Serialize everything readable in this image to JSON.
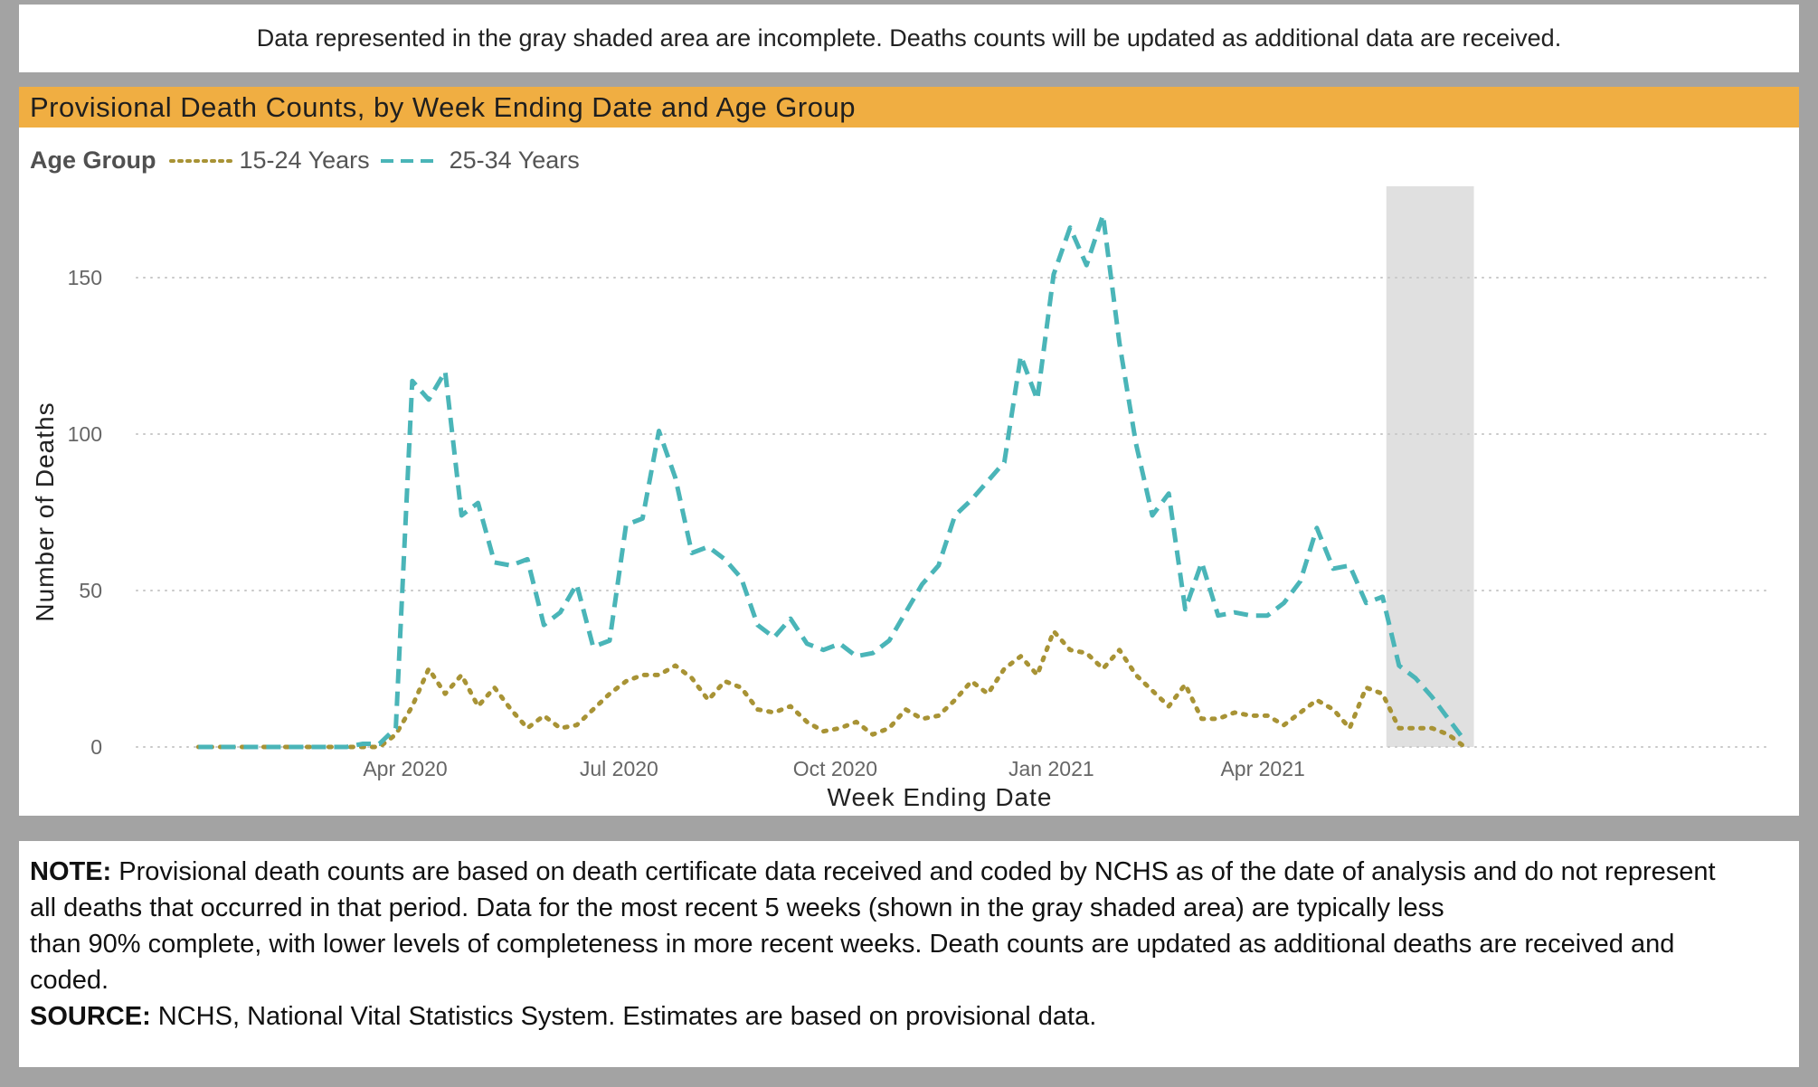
{
  "banner": {
    "text": "Data represented in the gray shaded area are incomplete. Deaths counts will be updated as additional data are received."
  },
  "chart": {
    "title": "Provisional Death Counts, by Week Ending Date and Age Group",
    "legend_title": "Age Group"
  },
  "notes": {
    "note_label": "NOTE:",
    "note_line1": " Provisional death counts are based on death certificate data received and coded by NCHS as of the date of analysis and do not represent",
    "note_line2": "all deaths that occurred in that period. Data for the most recent 5 weeks (shown in the gray shaded area) are typically less",
    "note_line3": "than 90% complete, with lower levels of completeness in more recent weeks.  Death counts are updated as additional deaths are received and",
    "note_line4": "coded.",
    "source_label": "SOURCE:",
    "source_text": " NCHS, National Vital Statistics System. Estimates are based on provisional data."
  },
  "colors": {
    "title_bar": "#f0ae42",
    "series_15_24": "#a89335",
    "series_25_34": "#4ab5b8",
    "shade": "#e0e0e0"
  },
  "chart_data": {
    "type": "line",
    "title": "Provisional Death Counts, by Week Ending Date and Age Group",
    "xlabel": "Week Ending Date",
    "ylabel": "Number of Deaths",
    "ylim": [
      0,
      170
    ],
    "yticks": [
      0,
      50,
      100,
      150
    ],
    "xticks": [
      {
        "label": "Apr 2020",
        "date": "2020-04-01"
      },
      {
        "label": "Jul 2020",
        "date": "2020-07-01"
      },
      {
        "label": "Oct 2020",
        "date": "2020-10-01"
      },
      {
        "label": "Jan 2021",
        "date": "2021-01-01"
      },
      {
        "label": "Apr 2021",
        "date": "2021-04-01"
      }
    ],
    "grid": "horizontal dotted",
    "legend_position": "top-left",
    "shaded_region": {
      "from": "2021-05-29",
      "to": "2021-06-26",
      "label": "incomplete data"
    },
    "x": [
      "2020-01-04",
      "2020-01-11",
      "2020-01-18",
      "2020-01-25",
      "2020-02-01",
      "2020-02-08",
      "2020-02-15",
      "2020-02-22",
      "2020-02-29",
      "2020-03-07",
      "2020-03-14",
      "2020-03-21",
      "2020-03-28",
      "2020-04-04",
      "2020-04-11",
      "2020-04-18",
      "2020-04-25",
      "2020-05-02",
      "2020-05-09",
      "2020-05-16",
      "2020-05-23",
      "2020-05-30",
      "2020-06-06",
      "2020-06-13",
      "2020-06-20",
      "2020-06-27",
      "2020-07-04",
      "2020-07-11",
      "2020-07-18",
      "2020-07-25",
      "2020-08-01",
      "2020-08-08",
      "2020-08-15",
      "2020-08-22",
      "2020-08-29",
      "2020-09-05",
      "2020-09-12",
      "2020-09-19",
      "2020-09-26",
      "2020-10-03",
      "2020-10-10",
      "2020-10-17",
      "2020-10-24",
      "2020-10-31",
      "2020-11-07",
      "2020-11-14",
      "2020-11-21",
      "2020-11-28",
      "2020-12-05",
      "2020-12-12",
      "2020-12-19",
      "2020-12-26",
      "2021-01-02",
      "2021-01-09",
      "2021-01-16",
      "2021-01-23",
      "2021-01-30",
      "2021-02-06",
      "2021-02-13",
      "2021-02-20",
      "2021-02-27",
      "2021-03-06",
      "2021-03-13",
      "2021-03-20",
      "2021-03-27",
      "2021-04-03",
      "2021-04-10",
      "2021-04-17",
      "2021-04-24",
      "2021-05-01",
      "2021-05-08",
      "2021-05-15",
      "2021-05-22",
      "2021-05-29",
      "2021-06-05",
      "2021-06-12",
      "2021-06-19",
      "2021-06-26"
    ],
    "series": [
      {
        "name": "15-24 Years",
        "style": "dotted",
        "color": "#a89335",
        "values": [
          0,
          0,
          0,
          0,
          0,
          0,
          0,
          0,
          0,
          0,
          0,
          0,
          4,
          13,
          25,
          17,
          23,
          13,
          19,
          12,
          6,
          10,
          6,
          7,
          12,
          17,
          21,
          23,
          23,
          26,
          22,
          15,
          21,
          19,
          12,
          11,
          13,
          8,
          5,
          6,
          8,
          4,
          6,
          12,
          9,
          10,
          15,
          21,
          17,
          25,
          29,
          23,
          37,
          31,
          30,
          25,
          31,
          23,
          18,
          13,
          20,
          9,
          9,
          11,
          10,
          10,
          7,
          11,
          15,
          12,
          6,
          19,
          17,
          6,
          6,
          6,
          4,
          0
        ]
      },
      {
        "name": "25-34 Years",
        "style": "dashed",
        "color": "#4ab5b8",
        "values": [
          0,
          0,
          0,
          0,
          0,
          0,
          0,
          0,
          0,
          0,
          1,
          1,
          6,
          117,
          111,
          120,
          74,
          78,
          59,
          58,
          60,
          39,
          43,
          52,
          32,
          34,
          71,
          73,
          101,
          86,
          62,
          64,
          60,
          54,
          39,
          35,
          41,
          33,
          31,
          33,
          29,
          30,
          34,
          43,
          52,
          58,
          74,
          79,
          85,
          91,
          125,
          111,
          151,
          166,
          154,
          170,
          129,
          97,
          74,
          81,
          44,
          59,
          42,
          43,
          42,
          42,
          46,
          53,
          70,
          57,
          58,
          46,
          48,
          26,
          22,
          16,
          9,
          2
        ]
      }
    ]
  }
}
